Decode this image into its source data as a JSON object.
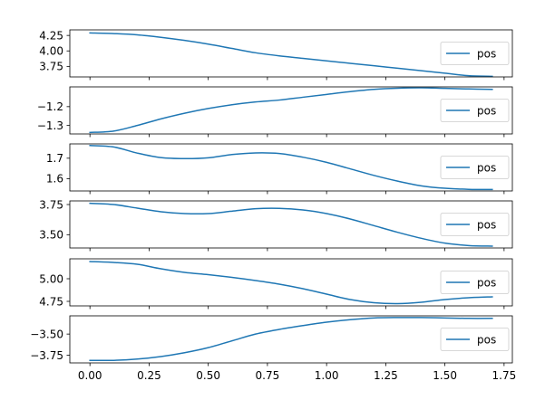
{
  "chart_data": [
    {
      "type": "line",
      "x": [
        0,
        0.1,
        0.2,
        0.3,
        0.4,
        0.5,
        0.6,
        0.7,
        0.8,
        0.9,
        1.0,
        1.1,
        1.2,
        1.3,
        1.4,
        1.5,
        1.6,
        1.7
      ],
      "series": [
        {
          "name": "pos",
          "values": [
            4.29,
            4.28,
            4.26,
            4.22,
            4.17,
            4.11,
            4.04,
            3.97,
            3.92,
            3.88,
            3.84,
            3.8,
            3.76,
            3.72,
            3.68,
            3.64,
            3.6,
            3.59
          ]
        }
      ],
      "ylim": [
        3.58,
        4.34
      ],
      "yticks": [
        3.75,
        4.0,
        4.25
      ],
      "ytick_labels": [
        "3.75",
        "4.00",
        "4.25"
      ],
      "legend": "right"
    },
    {
      "type": "line",
      "x": [
        0,
        0.1,
        0.2,
        0.3,
        0.4,
        0.5,
        0.6,
        0.7,
        0.8,
        0.9,
        1.0,
        1.1,
        1.2,
        1.3,
        1.4,
        1.5,
        1.6,
        1.7
      ],
      "series": [
        {
          "name": "pos",
          "values": [
            -1.337,
            -1.33,
            -1.3,
            -1.265,
            -1.235,
            -1.21,
            -1.19,
            -1.175,
            -1.165,
            -1.15,
            -1.135,
            -1.12,
            -1.108,
            -1.102,
            -1.1,
            -1.103,
            -1.106,
            -1.108
          ]
        }
      ],
      "ylim": [
        -1.345,
        -1.095
      ],
      "yticks": [
        -1.3,
        -1.2
      ],
      "ytick_labels": [
        "−1.3",
        "−1.2"
      ],
      "legend": "right"
    },
    {
      "type": "line",
      "x": [
        0,
        0.1,
        0.2,
        0.3,
        0.4,
        0.5,
        0.6,
        0.7,
        0.8,
        0.9,
        1.0,
        1.1,
        1.2,
        1.3,
        1.4,
        1.5,
        1.6,
        1.7
      ],
      "series": [
        {
          "name": "pos",
          "values": [
            1.762,
            1.755,
            1.725,
            1.703,
            1.698,
            1.702,
            1.718,
            1.726,
            1.723,
            1.705,
            1.68,
            1.648,
            1.616,
            1.588,
            1.565,
            1.553,
            1.548,
            1.547
          ]
        }
      ],
      "ylim": [
        1.54,
        1.77
      ],
      "yticks": [
        1.6,
        1.7
      ],
      "ytick_labels": [
        "1.6",
        "1.7"
      ],
      "legend": "right"
    },
    {
      "type": "line",
      "x": [
        0,
        0.1,
        0.2,
        0.3,
        0.4,
        0.5,
        0.6,
        0.7,
        0.8,
        0.9,
        1.0,
        1.1,
        1.2,
        1.3,
        1.4,
        1.5,
        1.6,
        1.7
      ],
      "series": [
        {
          "name": "pos",
          "values": [
            3.76,
            3.75,
            3.72,
            3.69,
            3.675,
            3.675,
            3.695,
            3.715,
            3.718,
            3.705,
            3.675,
            3.63,
            3.575,
            3.52,
            3.47,
            3.43,
            3.41,
            3.405
          ]
        }
      ],
      "ylim": [
        3.39,
        3.78
      ],
      "yticks": [
        3.5,
        3.75
      ],
      "ytick_labels": [
        "3.50",
        "3.75"
      ],
      "legend": "right"
    },
    {
      "type": "line",
      "x": [
        0,
        0.1,
        0.2,
        0.3,
        0.4,
        0.5,
        0.6,
        0.7,
        0.8,
        0.9,
        1.0,
        1.1,
        1.2,
        1.3,
        1.4,
        1.5,
        1.6,
        1.7
      ],
      "series": [
        {
          "name": "pos",
          "values": [
            5.19,
            5.18,
            5.16,
            5.11,
            5.07,
            5.045,
            5.015,
            4.98,
            4.94,
            4.89,
            4.83,
            4.77,
            4.735,
            4.725,
            4.74,
            4.77,
            4.79,
            4.8
          ]
        }
      ],
      "ylim": [
        4.7,
        5.22
      ],
      "yticks": [
        4.75,
        5.0
      ],
      "ytick_labels": [
        "4.75",
        "5.00"
      ],
      "legend": "right"
    },
    {
      "type": "line",
      "x": [
        0,
        0.1,
        0.2,
        0.3,
        0.4,
        0.5,
        0.6,
        0.7,
        0.8,
        0.9,
        1.0,
        1.1,
        1.2,
        1.3,
        1.4,
        1.5,
        1.6,
        1.7
      ],
      "series": [
        {
          "name": "pos",
          "values": [
            -3.81,
            -3.81,
            -3.795,
            -3.765,
            -3.72,
            -3.66,
            -3.58,
            -3.5,
            -3.445,
            -3.4,
            -3.36,
            -3.33,
            -3.31,
            -3.305,
            -3.305,
            -3.31,
            -3.315,
            -3.315
          ]
        }
      ],
      "ylim": [
        -3.84,
        -3.285
      ],
      "yticks": [
        -3.75,
        -3.5
      ],
      "ytick_labels": [
        "−3.75",
        "−3.50"
      ],
      "legend": "right"
    }
  ],
  "shared_x": {
    "xlim": [
      -0.085,
      1.785
    ],
    "xticks": [
      0,
      0.25,
      0.5,
      0.75,
      1.0,
      1.25,
      1.5,
      1.75
    ],
    "xtick_labels": [
      "0.00",
      "0.25",
      "0.50",
      "0.75",
      "1.00",
      "1.25",
      "1.50",
      "1.75"
    ]
  },
  "colors": {
    "line": "#1f77b4",
    "axes": "#000000",
    "legend_border": "#cccccc"
  }
}
